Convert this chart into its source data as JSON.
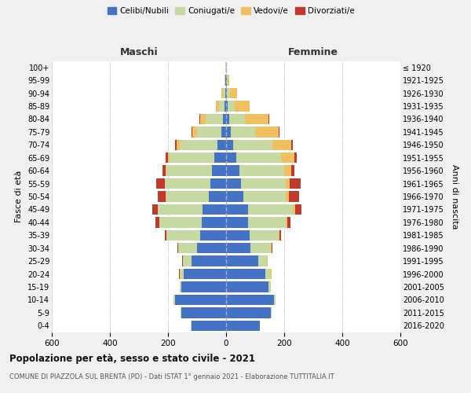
{
  "age_groups_bottom_to_top": [
    "0-4",
    "5-9",
    "10-14",
    "15-19",
    "20-24",
    "25-29",
    "30-34",
    "35-39",
    "40-44",
    "45-49",
    "50-54",
    "55-59",
    "60-64",
    "65-69",
    "70-74",
    "75-79",
    "80-84",
    "85-89",
    "90-94",
    "95-99",
    "100+"
  ],
  "birth_years_bottom_to_top": [
    "2016-2020",
    "2011-2015",
    "2006-2010",
    "2001-2005",
    "1996-2000",
    "1991-1995",
    "1986-1990",
    "1981-1985",
    "1976-1980",
    "1971-1975",
    "1966-1970",
    "1961-1965",
    "1956-1960",
    "1951-1955",
    "1946-1950",
    "1941-1945",
    "1936-1940",
    "1931-1935",
    "1926-1930",
    "1921-1925",
    "≤ 1920"
  ],
  "maschi": {
    "celibi": [
      120,
      155,
      175,
      155,
      145,
      120,
      100,
      90,
      85,
      80,
      60,
      55,
      50,
      40,
      30,
      15,
      10,
      5,
      3,
      2,
      1
    ],
    "coniugati": [
      2,
      2,
      5,
      5,
      15,
      30,
      65,
      115,
      145,
      155,
      145,
      155,
      155,
      155,
      130,
      85,
      60,
      20,
      8,
      3,
      1
    ],
    "vedovi": [
      0,
      0,
      0,
      0,
      0,
      0,
      0,
      0,
      1,
      1,
      2,
      2,
      3,
      5,
      10,
      15,
      20,
      10,
      5,
      1,
      0
    ],
    "divorziati": [
      0,
      0,
      0,
      0,
      1,
      2,
      3,
      5,
      12,
      18,
      28,
      28,
      10,
      8,
      5,
      5,
      2,
      1,
      0,
      0,
      0
    ]
  },
  "femmine": {
    "nubili": [
      115,
      155,
      165,
      145,
      135,
      110,
      85,
      80,
      75,
      75,
      60,
      50,
      45,
      35,
      25,
      15,
      10,
      5,
      3,
      2,
      1
    ],
    "coniugate": [
      2,
      2,
      5,
      8,
      20,
      30,
      70,
      100,
      130,
      155,
      145,
      155,
      155,
      155,
      135,
      85,
      55,
      25,
      10,
      3,
      1
    ],
    "vedove": [
      0,
      0,
      0,
      0,
      1,
      2,
      2,
      3,
      5,
      8,
      10,
      15,
      25,
      45,
      65,
      80,
      80,
      50,
      25,
      5,
      1
    ],
    "divorziate": [
      0,
      0,
      0,
      0,
      1,
      2,
      3,
      5,
      12,
      22,
      35,
      38,
      10,
      8,
      5,
      5,
      3,
      2,
      1,
      0,
      0
    ]
  },
  "colors": {
    "celibi_nubili": "#4472c4",
    "coniugati_e": "#c5d9a0",
    "vedovi_e": "#f0c060",
    "divorziati_e": "#c0392b"
  },
  "xlim": 600,
  "title": "Popolazione per età, sesso e stato civile - 2021",
  "subtitle": "COMUNE DI PIAZZOLA SUL BRENTA (PD) - Dati ISTAT 1° gennaio 2021 - Elaborazione TUTTITALIA.IT",
  "ylabel_left": "Fasce di età",
  "ylabel_right": "Anni di nascita",
  "xlabel_maschi": "Maschi",
  "xlabel_femmine": "Femmine",
  "legend_labels": [
    "Celibi/Nubili",
    "Coniugati/e",
    "Vedovi/e",
    "Divorziati/e"
  ],
  "bg_color": "#f0f0f0",
  "plot_bg": "#ffffff"
}
